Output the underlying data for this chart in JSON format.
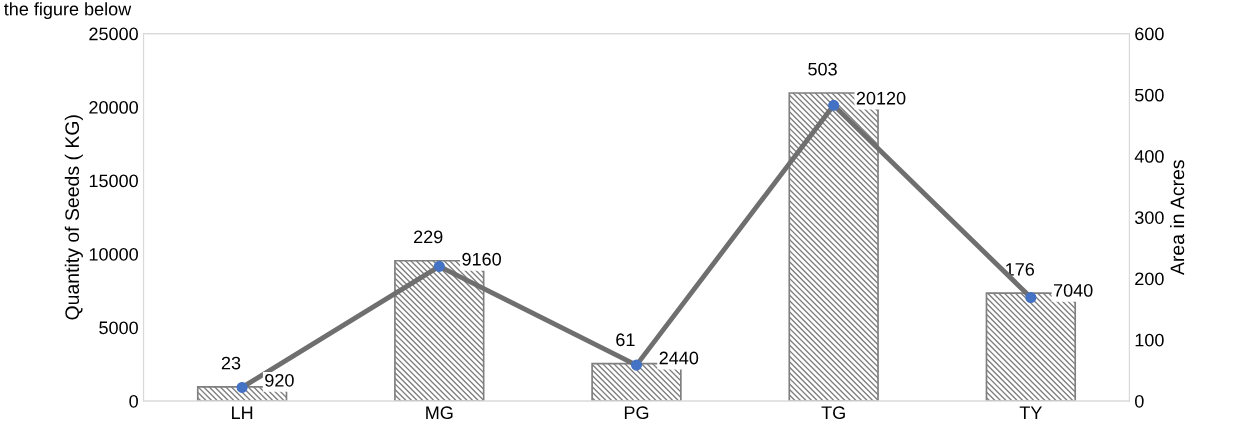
{
  "chart_data": {
    "type": "bar",
    "annotations": [
      "the figure below"
    ],
    "ylabel": "Quantity of Seeds ( KG)",
    "y2label": "Area in Acres",
    "categories": [
      "LH",
      "MG",
      "PG",
      "TG",
      "TY"
    ],
    "series": [
      {
        "axis": "y2",
        "color": "#7f7f7f",
        "values": [
          23,
          229,
          61,
          503,
          176
        ]
      },
      {
        "type": "line",
        "axis": "y",
        "color": "#6f6f6f",
        "marker": "circle",
        "values": [
          920,
          9160,
          2440,
          20120,
          7040
        ]
      }
    ],
    "ylim": [
      0,
      25000
    ],
    "yticks": [
      0,
      5000,
      10000,
      15000,
      20000,
      25000
    ],
    "y2lim": [
      0,
      600
    ],
    "y2ticks": [
      0,
      100,
      200,
      300,
      400,
      500,
      600
    ],
    "data_labels": true,
    "grid": false,
    "legend": false
  }
}
